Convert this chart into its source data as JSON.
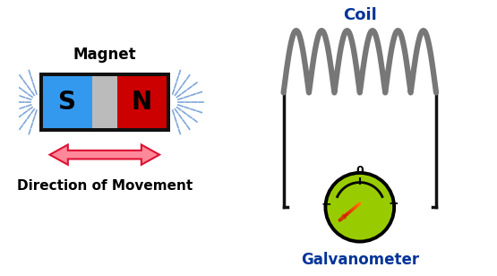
{
  "bg_color": "#ffffff",
  "magnet_label": "Magnet",
  "coil_label": "Coil",
  "galvanometer_label": "Galvanometer",
  "direction_label": "Direction of Movement",
  "S_color": "#3399ee",
  "N_color": "#cc0000",
  "middle_color": "#bbbbbb",
  "magnet_border": "#111111",
  "coil_color": "#777777",
  "galv_color": "#99cc00",
  "arrow_fill": "#ff8899",
  "arrow_stroke": "#dd1133",
  "needle_color_tip": "#dd8800",
  "needle_color_tail": "#cc3300",
  "wire_color": "#111111",
  "field_color": "#5588cc",
  "label_color": "#000000",
  "coil_label_color": "#003399",
  "galv_label_color": "#003399",
  "magnet_label_color": "#000000",
  "dir_label_color": "#000000"
}
